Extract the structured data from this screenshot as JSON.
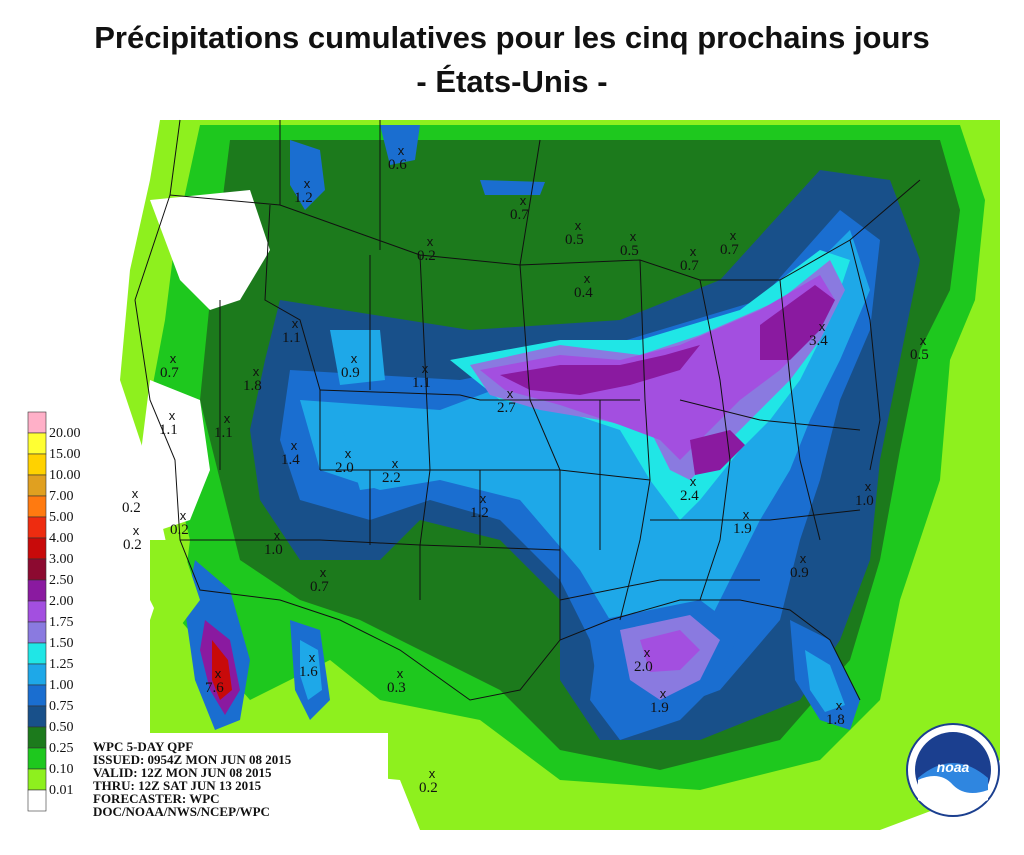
{
  "title_line1": "Précipitations cumulatives pour les cinq prochains jours",
  "title_line2": "- États-Unis -",
  "legend": [
    {
      "label": "20.00",
      "color": "#ffb0c8"
    },
    {
      "label": "15.00",
      "color": "#ffff33"
    },
    {
      "label": "10.00",
      "color": "#ffd200"
    },
    {
      "label": "7.00",
      "color": "#e0a020"
    },
    {
      "label": "5.00",
      "color": "#ff7a10"
    },
    {
      "label": "4.00",
      "color": "#ee2c10"
    },
    {
      "label": "3.00",
      "color": "#c80a0a"
    },
    {
      "label": "2.50",
      "color": "#8c0a30"
    },
    {
      "label": "2.00",
      "color": "#8a1aa0"
    },
    {
      "label": "1.75",
      "color": "#a34fe0"
    },
    {
      "label": "1.50",
      "color": "#8a7ae0"
    },
    {
      "label": "1.25",
      "color": "#20e6e6"
    },
    {
      "label": "1.00",
      "color": "#1ea8e8"
    },
    {
      "label": "0.75",
      "color": "#1a6ed0"
    },
    {
      "label": "0.50",
      "color": "#18508a"
    },
    {
      "label": "0.25",
      "color": "#1c7a1c"
    },
    {
      "label": "0.10",
      "color": "#1ec81e"
    },
    {
      "label": "0.01",
      "color": "#8ef01e"
    },
    {
      "label": "",
      "color": "#ffffff"
    }
  ],
  "value_labels": [
    "0.6",
    "1.2",
    "0.7",
    "0.5",
    "0.5",
    "0.7",
    "0.7",
    "0.2",
    "0.4",
    "1.1",
    "0.7",
    "1.8",
    "0.9",
    "1.1",
    "2.7",
    "3.4",
    "0.5",
    "1.1",
    "1.1",
    "1.4",
    "2.0",
    "2.2",
    "0.2",
    "0.2",
    "0.2",
    "1.2",
    "1.0",
    "2.4",
    "1.0",
    "1.9",
    "0.7",
    "0.9",
    "2.0",
    "1.6",
    "7.6",
    "0.3",
    "1.9",
    "1.8",
    "0.2"
  ],
  "info_lines": [
    "WPC 5-DAY QPF",
    "ISSUED: 0954Z MON JUN 08 2015",
    "VALID: 12Z MON JUN 08 2015",
    "THRU: 12Z SAT JUN 13 2015",
    "FORECASTER: WPC",
    "DOC/NOAA/NWS/NCEP/WPC"
  ],
  "logo": {
    "text": "noaa",
    "name": "noaa-logo"
  }
}
